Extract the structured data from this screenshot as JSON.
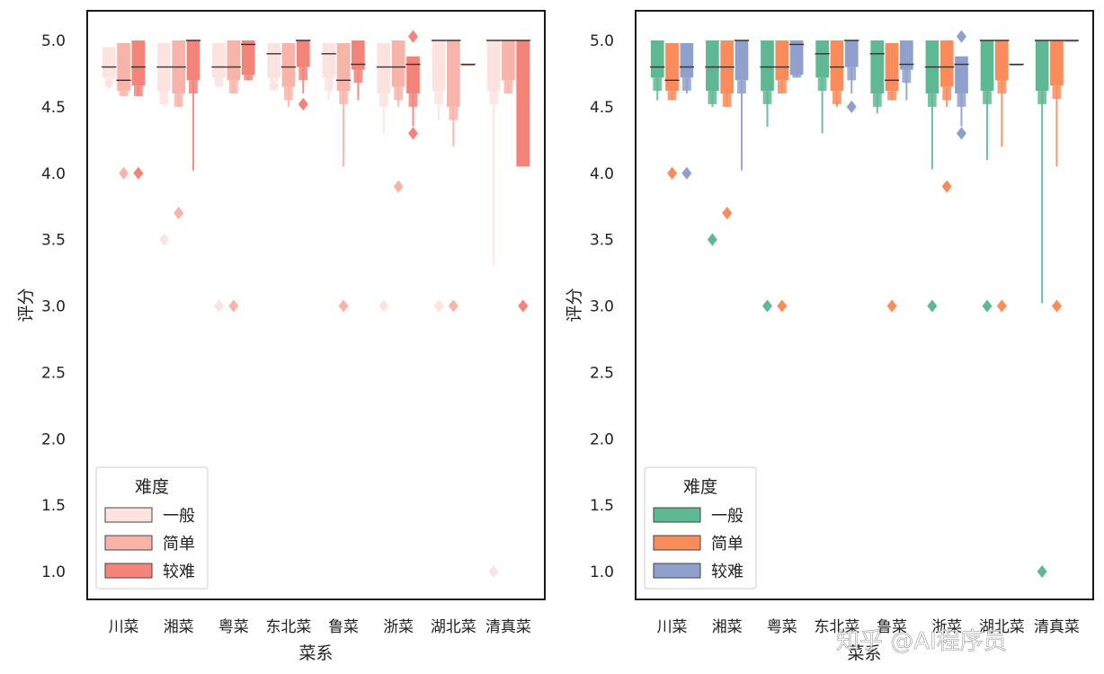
{
  "watermark": "知乎 @AI程序员",
  "chart_data": [
    {
      "type": "boxen",
      "panel": "left",
      "xlabel": "菜系",
      "ylabel": "评分",
      "ylim": [
        0.95,
        5.1
      ],
      "yticks": [
        1.0,
        1.5,
        2.0,
        2.5,
        3.0,
        3.5,
        4.0,
        4.5,
        5.0
      ],
      "ytick_labels": [
        "1.0",
        "1.5",
        "2.0",
        "2.5",
        "3.0",
        "3.5",
        "4.0",
        "4.5",
        "5.0"
      ],
      "categories": [
        "川菜",
        "湘菜",
        "粤菜",
        "东北菜",
        "鲁菜",
        "浙菜",
        "湖北菜",
        "清真菜"
      ],
      "legend_title": "难度",
      "legend_position": "lower-left",
      "series": [
        {
          "name": "一般",
          "color": "#fde3e0",
          "stats": [
            {
              "median": 4.8,
              "q1": 4.72,
              "q3": 4.95,
              "lo": 4.65,
              "hi": 5.0,
              "outliers": [
                4.68
              ]
            },
            {
              "median": 4.8,
              "q1": 4.62,
              "q3": 4.98,
              "lo": 4.5,
              "hi": 5.0,
              "outliers": [
                3.5
              ]
            },
            {
              "median": 4.8,
              "q1": 4.72,
              "q3": 4.98,
              "lo": 4.65,
              "hi": 5.0,
              "outliers": [
                3.0
              ]
            },
            {
              "median": 4.9,
              "q1": 4.72,
              "q3": 4.98,
              "lo": 4.62,
              "hi": 5.0,
              "outliers": [
                4.66
              ]
            },
            {
              "median": 4.9,
              "q1": 4.72,
              "q3": 4.98,
              "lo": 4.55,
              "hi": 5.0,
              "outliers": []
            },
            {
              "median": 4.8,
              "q1": 4.6,
              "q3": 4.98,
              "lo": 4.3,
              "hi": 5.0,
              "outliers": [
                3.0
              ]
            },
            {
              "median": 5.0,
              "q1": 4.62,
              "q3": 5.0,
              "lo": 4.4,
              "hi": 5.0,
              "outliers": [
                3.0
              ]
            },
            {
              "median": 5.0,
              "q1": 4.62,
              "q3": 5.0,
              "lo": 3.3,
              "hi": 5.0,
              "outliers": [
                1.0
              ]
            }
          ]
        },
        {
          "name": "简单",
          "color": "#f9b4aa",
          "stats": [
            {
              "median": 4.7,
              "q1": 4.62,
              "q3": 4.98,
              "lo": 4.58,
              "hi": 5.0,
              "outliers": [
                4.0
              ]
            },
            {
              "median": 4.8,
              "q1": 4.6,
              "q3": 5.0,
              "lo": 4.5,
              "hi": 5.0,
              "outliers": [
                3.7
              ]
            },
            {
              "median": 4.8,
              "q1": 4.7,
              "q3": 5.0,
              "lo": 4.6,
              "hi": 5.0,
              "outliers": [
                3.0
              ]
            },
            {
              "median": 4.8,
              "q1": 4.65,
              "q3": 4.98,
              "lo": 4.5,
              "hi": 5.0,
              "outliers": []
            },
            {
              "median": 4.7,
              "q1": 4.62,
              "q3": 4.98,
              "lo": 4.05,
              "hi": 5.0,
              "outliers": [
                3.0
              ]
            },
            {
              "median": 4.8,
              "q1": 4.65,
              "q3": 5.0,
              "lo": 4.5,
              "hi": 5.0,
              "outliers": [
                3.9
              ]
            },
            {
              "median": 5.0,
              "q1": 4.5,
              "q3": 5.0,
              "lo": 4.2,
              "hi": 5.0,
              "outliers": [
                3.0
              ]
            },
            {
              "median": 5.0,
              "q1": 4.7,
              "q3": 5.0,
              "lo": 4.6,
              "hi": 5.0,
              "outliers": []
            }
          ]
        },
        {
          "name": "较难",
          "color": "#f4837a",
          "stats": [
            {
              "median": 4.8,
              "q1": 4.66,
              "q3": 5.0,
              "lo": 4.58,
              "hi": 5.0,
              "outliers": [
                4.0
              ]
            },
            {
              "median": 5.0,
              "q1": 4.7,
              "q3": 5.0,
              "lo": 4.02,
              "hi": 5.0,
              "outliers": []
            },
            {
              "median": 4.97,
              "q1": 4.74,
              "q3": 5.0,
              "lo": 4.7,
              "hi": 5.0,
              "outliers": []
            },
            {
              "median": 5.0,
              "q1": 4.8,
              "q3": 5.0,
              "lo": 4.6,
              "hi": 5.0,
              "outliers": [
                4.52
              ]
            },
            {
              "median": 4.82,
              "q1": 4.78,
              "q3": 5.0,
              "lo": 4.55,
              "hi": 5.0,
              "outliers": []
            },
            {
              "median": 4.82,
              "q1": 4.6,
              "q3": 4.88,
              "lo": 4.35,
              "hi": 5.0,
              "outliers": [
                5.03,
                4.3
              ]
            },
            {
              "median": 4.82,
              "q1": 4.82,
              "q3": 4.82,
              "lo": 4.82,
              "hi": 4.82,
              "outliers": []
            },
            {
              "median": 5.0,
              "q1": 4.05,
              "q3": 5.0,
              "lo": 4.05,
              "hi": 5.0,
              "outliers": [
                3.0
              ]
            }
          ]
        }
      ]
    },
    {
      "type": "boxen",
      "panel": "right",
      "xlabel": "菜系",
      "ylabel": "评分",
      "ylim": [
        0.95,
        5.1
      ],
      "yticks": [
        1.0,
        1.5,
        2.0,
        2.5,
        3.0,
        3.5,
        4.0,
        4.5,
        5.0
      ],
      "ytick_labels": [
        "1.0",
        "1.5",
        "2.0",
        "2.5",
        "3.0",
        "3.5",
        "4.0",
        "4.5",
        "5.0"
      ],
      "categories": [
        "川菜",
        "湘菜",
        "粤菜",
        "东北菜",
        "鲁菜",
        "浙菜",
        "湖北菜",
        "清真菜"
      ],
      "legend_title": "难度",
      "legend_position": "lower-left",
      "series": [
        {
          "name": "一般",
          "color": "#5fb894",
          "stats": [
            {
              "median": 4.8,
              "q1": 4.72,
              "q3": 5.0,
              "lo": 4.55,
              "hi": 5.0,
              "outliers": []
            },
            {
              "median": 4.8,
              "q1": 4.62,
              "q3": 5.0,
              "lo": 4.5,
              "hi": 5.0,
              "outliers": [
                3.5
              ]
            },
            {
              "median": 4.8,
              "q1": 4.62,
              "q3": 5.0,
              "lo": 4.35,
              "hi": 5.0,
              "outliers": [
                3.0
              ]
            },
            {
              "median": 4.9,
              "q1": 4.72,
              "q3": 5.0,
              "lo": 4.3,
              "hi": 5.0,
              "outliers": []
            },
            {
              "median": 4.9,
              "q1": 4.6,
              "q3": 5.0,
              "lo": 4.45,
              "hi": 5.0,
              "outliers": []
            },
            {
              "median": 4.8,
              "q1": 4.6,
              "q3": 5.0,
              "lo": 4.03,
              "hi": 5.0,
              "outliers": [
                3.0
              ]
            },
            {
              "median": 5.0,
              "q1": 4.62,
              "q3": 5.0,
              "lo": 4.1,
              "hi": 5.0,
              "outliers": [
                3.0
              ]
            },
            {
              "median": 5.0,
              "q1": 4.62,
              "q3": 5.0,
              "lo": 3.02,
              "hi": 5.0,
              "outliers": [
                1.0
              ]
            }
          ]
        },
        {
          "name": "简单",
          "color": "#f98c5a",
          "stats": [
            {
              "median": 4.7,
              "q1": 4.62,
              "q3": 4.98,
              "lo": 4.55,
              "hi": 5.0,
              "outliers": [
                4.0
              ]
            },
            {
              "median": 4.8,
              "q1": 4.6,
              "q3": 5.0,
              "lo": 4.5,
              "hi": 5.0,
              "outliers": [
                3.7
              ]
            },
            {
              "median": 4.8,
              "q1": 4.7,
              "q3": 5.0,
              "lo": 4.6,
              "hi": 5.0,
              "outliers": [
                3.0
              ]
            },
            {
              "median": 4.8,
              "q1": 4.62,
              "q3": 5.0,
              "lo": 4.5,
              "hi": 5.0,
              "outliers": []
            },
            {
              "median": 4.7,
              "q1": 4.62,
              "q3": 4.98,
              "lo": 4.55,
              "hi": 5.0,
              "outliers": [
                3.0
              ]
            },
            {
              "median": 4.8,
              "q1": 4.65,
              "q3": 5.0,
              "lo": 4.5,
              "hi": 5.0,
              "outliers": [
                3.9
              ]
            },
            {
              "median": 5.0,
              "q1": 4.7,
              "q3": 5.0,
              "lo": 4.2,
              "hi": 5.0,
              "outliers": [
                3.0
              ]
            },
            {
              "median": 5.0,
              "q1": 4.66,
              "q3": 5.0,
              "lo": 4.05,
              "hi": 5.0,
              "outliers": [
                3.0
              ]
            }
          ]
        },
        {
          "name": "较难",
          "color": "#8fa0cc",
          "stats": [
            {
              "median": 4.8,
              "q1": 4.72,
              "q3": 4.98,
              "lo": 4.6,
              "hi": 5.0,
              "outliers": [
                4.0
              ]
            },
            {
              "median": 5.0,
              "q1": 4.7,
              "q3": 5.0,
              "lo": 4.02,
              "hi": 5.0,
              "outliers": []
            },
            {
              "median": 4.97,
              "q1": 4.74,
              "q3": 5.0,
              "lo": 4.72,
              "hi": 5.0,
              "outliers": []
            },
            {
              "median": 5.0,
              "q1": 4.8,
              "q3": 5.0,
              "lo": 4.6,
              "hi": 5.0,
              "outliers": [
                4.5
              ]
            },
            {
              "median": 4.82,
              "q1": 4.78,
              "q3": 5.0,
              "lo": 4.55,
              "hi": 5.0,
              "outliers": []
            },
            {
              "median": 4.82,
              "q1": 4.6,
              "q3": 4.88,
              "lo": 4.35,
              "hi": 5.0,
              "outliers": [
                5.03,
                4.3
              ]
            },
            {
              "median": 4.82,
              "q1": 4.82,
              "q3": 4.82,
              "lo": 4.82,
              "hi": 4.82,
              "outliers": []
            },
            {
              "median": 5.0,
              "q1": 5.0,
              "q3": 5.0,
              "lo": 5.0,
              "hi": 5.0,
              "outliers": []
            }
          ]
        }
      ]
    }
  ]
}
